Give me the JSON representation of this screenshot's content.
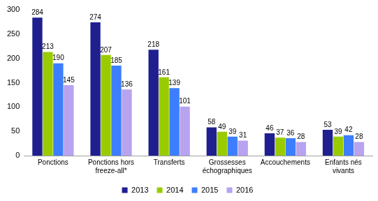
{
  "chart_data": {
    "type": "bar",
    "categories": [
      "Ponctions",
      "Ponctions hors freeze-all*",
      "Transferts",
      "Grossesses échographiques",
      "Accouchements",
      "Enfants nés vivants"
    ],
    "series": [
      {
        "name": "2013",
        "color": "#1f1f8f",
        "values": [
          284,
          274,
          218,
          58,
          46,
          53
        ]
      },
      {
        "name": "2014",
        "color": "#99cc00",
        "values": [
          213,
          207,
          161,
          49,
          37,
          39
        ]
      },
      {
        "name": "2015",
        "color": "#3d7eff",
        "values": [
          190,
          185,
          139,
          39,
          36,
          42
        ]
      },
      {
        "name": "2016",
        "color": "#b7a3ef",
        "values": [
          145,
          136,
          101,
          31,
          28,
          28
        ]
      }
    ],
    "ylim": [
      0,
      300
    ],
    "yticks": [
      0,
      50,
      100,
      150,
      200,
      250,
      300
    ],
    "grid": false,
    "legend": "bottom",
    "data_labels": true
  }
}
